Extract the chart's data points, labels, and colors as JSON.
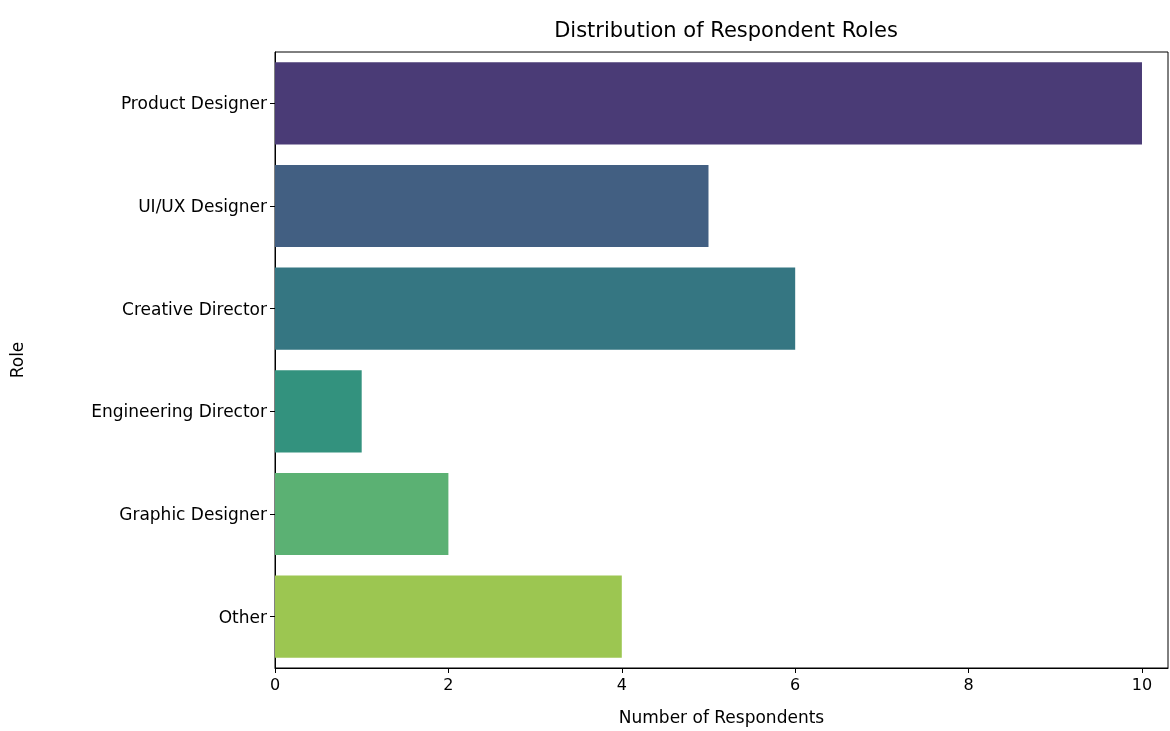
{
  "chart_data": {
    "type": "bar",
    "orientation": "horizontal",
    "title": "Distribution of Respondent Roles",
    "xlabel": "Number of Respondents",
    "ylabel": "Role",
    "categories": [
      "Product Designer",
      "UI/UX Designer",
      "Creative Director",
      "Engineering Director",
      "Graphic Designer",
      "Other"
    ],
    "values": [
      10,
      5,
      6,
      1,
      2,
      4
    ],
    "colors": [
      "#4a3b76",
      "#425f82",
      "#357682",
      "#33927e",
      "#5bb173",
      "#9cc651"
    ],
    "xlim": [
      0,
      10.3
    ],
    "xticks": [
      0,
      2,
      4,
      6,
      8,
      10
    ],
    "grid": false
  }
}
